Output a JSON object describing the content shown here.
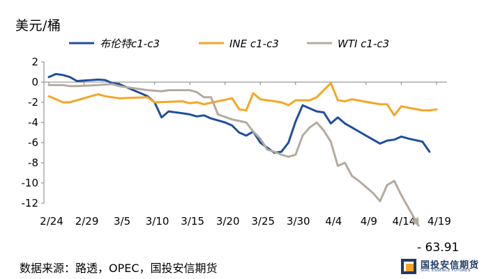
{
  "unit_label": "美元/桶",
  "source_text": "数据来源：路透，OPEC，国投安信期货",
  "annotation": "- 63.91",
  "logo": {
    "cn": "国投安信期货",
    "en": "SDIC ESSENCE FUTURES"
  },
  "colors": {
    "brent": "#1f4e9c",
    "ine": "#f5a623",
    "wti": "#b3aaa0",
    "axis": "#7f7f7f"
  },
  "chart_data": {
    "type": "line",
    "ylim": [
      -12,
      2
    ],
    "yticks": [
      2,
      0,
      -2,
      -4,
      -6,
      -8,
      -10,
      -12
    ],
    "x_range": [
      0,
      56
    ],
    "xticks": [
      {
        "label": "2/24",
        "i": 0
      },
      {
        "label": "2/29",
        "i": 5
      },
      {
        "label": "3/5",
        "i": 10
      },
      {
        "label": "3/10",
        "i": 15
      },
      {
        "label": "3/15",
        "i": 20
      },
      {
        "label": "3/20",
        "i": 25
      },
      {
        "label": "3/25",
        "i": 30
      },
      {
        "label": "3/30",
        "i": 35
      },
      {
        "label": "4/4",
        "i": 40
      },
      {
        "label": "4/9",
        "i": 45
      },
      {
        "label": "4/14",
        "i": 50
      },
      {
        "label": "4/19",
        "i": 55
      }
    ],
    "series": [
      {
        "name": "布伦特c1-c3",
        "color_key": "brent",
        "points": [
          [
            0,
            0.5
          ],
          [
            1,
            0.8
          ],
          [
            2,
            0.7
          ],
          [
            3,
            0.5
          ],
          [
            4,
            0.1
          ],
          [
            5,
            0.15
          ],
          [
            6,
            0.2
          ],
          [
            7,
            0.25
          ],
          [
            8,
            0.2
          ],
          [
            9,
            -0.1
          ],
          [
            10,
            -0.2
          ],
          [
            11,
            -0.5
          ],
          [
            12,
            -0.8
          ],
          [
            13,
            -1.1
          ],
          [
            14,
            -1.4
          ],
          [
            15,
            -2.0
          ],
          [
            16,
            -3.5
          ],
          [
            17,
            -2.9
          ],
          [
            18,
            -3.0
          ],
          [
            19,
            -3.1
          ],
          [
            20,
            -3.2
          ],
          [
            21,
            -3.4
          ],
          [
            22,
            -3.3
          ],
          [
            23,
            -3.6
          ],
          [
            24,
            -3.8
          ],
          [
            25,
            -4.0
          ],
          [
            26,
            -4.3
          ],
          [
            27,
            -5.0
          ],
          [
            28,
            -5.3
          ],
          [
            29,
            -4.9
          ],
          [
            30,
            -6.0
          ],
          [
            31,
            -6.5
          ],
          [
            32,
            -7.0
          ],
          [
            33,
            -6.9
          ],
          [
            34,
            -6.0
          ],
          [
            35,
            -3.9
          ],
          [
            36,
            -2.3
          ],
          [
            37,
            -2.6
          ],
          [
            38,
            -2.9
          ],
          [
            39,
            -3.0
          ],
          [
            40,
            -4.1
          ],
          [
            41,
            -3.5
          ],
          [
            42,
            -4.1
          ],
          [
            45,
            -5.3
          ],
          [
            47,
            -6.1
          ],
          [
            48,
            -5.8
          ],
          [
            49,
            -5.7
          ],
          [
            50,
            -5.4
          ],
          [
            51,
            -5.6
          ],
          [
            53,
            -5.9
          ],
          [
            54,
            -6.9
          ]
        ]
      },
      {
        "name": "INE c1-c3",
        "color_key": "ine",
        "points": [
          [
            0,
            -1.4
          ],
          [
            2,
            -2.0
          ],
          [
            3,
            -2.0
          ],
          [
            7,
            -1.2
          ],
          [
            8,
            -1.4
          ],
          [
            9,
            -1.5
          ],
          [
            10,
            -1.6
          ],
          [
            14,
            -1.5
          ],
          [
            15,
            -2.0
          ],
          [
            19,
            -1.9
          ],
          [
            20,
            -2.1
          ],
          [
            21,
            -2.0
          ],
          [
            22,
            -2.2
          ],
          [
            26,
            -1.6
          ],
          [
            27,
            -2.7
          ],
          [
            28,
            -2.8
          ],
          [
            29,
            -1.1
          ],
          [
            30,
            -1.7
          ],
          [
            33,
            -2.0
          ],
          [
            34,
            -2.3
          ],
          [
            35,
            -1.8
          ],
          [
            37,
            -1.8
          ],
          [
            38,
            -1.5
          ],
          [
            40,
            -0.1
          ],
          [
            41,
            -1.8
          ],
          [
            42,
            -1.9
          ],
          [
            43,
            -1.7
          ],
          [
            47,
            -2.2
          ],
          [
            48,
            -2.2
          ],
          [
            49,
            -3.3
          ],
          [
            50,
            -2.4
          ],
          [
            53,
            -2.8
          ],
          [
            54,
            -2.8
          ],
          [
            55,
            -2.7
          ]
        ]
      },
      {
        "name": "WTI c1-c3",
        "color_key": "wti",
        "points": [
          [
            0,
            -0.3
          ],
          [
            2,
            -0.3
          ],
          [
            3,
            -0.4
          ],
          [
            4,
            -0.4
          ],
          [
            7,
            -0.3
          ],
          [
            9,
            -0.2
          ],
          [
            10,
            -0.4
          ],
          [
            12,
            -0.6
          ],
          [
            14,
            -0.8
          ],
          [
            16,
            -0.9
          ],
          [
            17,
            -0.8
          ],
          [
            18,
            -0.8
          ],
          [
            20,
            -0.8
          ],
          [
            21,
            -1.0
          ],
          [
            22,
            -1.5
          ],
          [
            23,
            -1.5
          ],
          [
            24,
            -3.2
          ],
          [
            26,
            -3.7
          ],
          [
            28,
            -4.0
          ],
          [
            29,
            -4.9
          ],
          [
            30,
            -5.6
          ],
          [
            31,
            -6.7
          ],
          [
            32,
            -6.9
          ],
          [
            33,
            -7.2
          ],
          [
            34,
            -7.4
          ],
          [
            35,
            -7.2
          ],
          [
            36,
            -5.3
          ],
          [
            37,
            -4.5
          ],
          [
            38,
            -4.0
          ],
          [
            39,
            -4.8
          ],
          [
            40,
            -5.9
          ],
          [
            41,
            -8.3
          ],
          [
            42,
            -8.0
          ],
          [
            43,
            -9.3
          ],
          [
            44,
            -9.8
          ],
          [
            46,
            -11.0
          ],
          [
            47,
            -11.8
          ],
          [
            48,
            -10.2
          ],
          [
            49,
            -9.8
          ],
          [
            50,
            -11.2
          ]
        ]
      }
    ],
    "wti_extension": {
      "note": "arrow toward -63.91",
      "from": [
        50,
        -11.2
      ],
      "to": [
        52.5,
        -14.3
      ]
    },
    "legend_position": "top",
    "grid": false
  }
}
